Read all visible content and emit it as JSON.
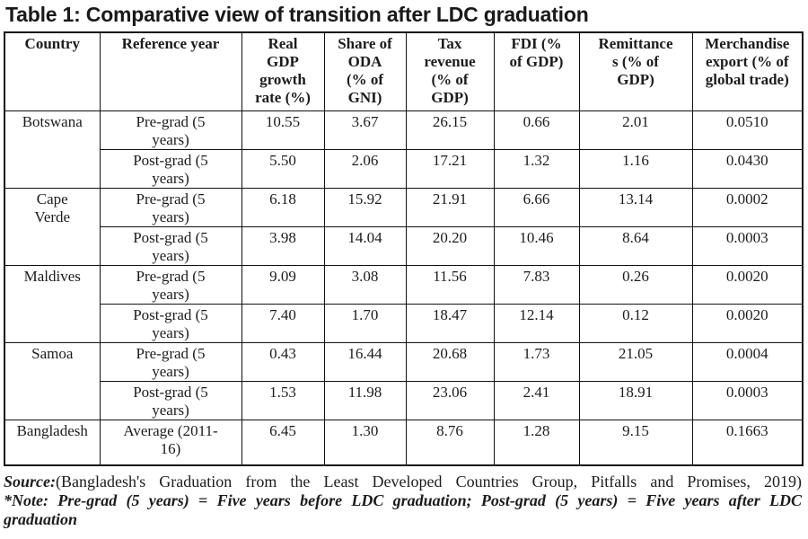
{
  "title": "Table 1: Comparative view of transition after LDC graduation",
  "chart_data": {
    "type": "table",
    "title": "Table 1: Comparative view of transition after LDC graduation",
    "columns": [
      "Country",
      "Reference year",
      "Real GDP growth rate (%)",
      "Share of ODA (% of GNI)",
      "Tax revenue (% of GDP)",
      "FDI (% of GDP)",
      "Remittances (% of GDP)",
      "Merchandise export (% of global trade)"
    ],
    "rows": [
      [
        "Botswana",
        "Pre-grad (5 years)",
        10.55,
        3.67,
        26.15,
        0.66,
        2.01,
        0.051
      ],
      [
        "Botswana",
        "Post-grad (5 years)",
        5.5,
        2.06,
        17.21,
        1.32,
        1.16,
        0.043
      ],
      [
        "Cape Verde",
        "Pre-grad (5 years)",
        6.18,
        15.92,
        21.91,
        6.66,
        13.14,
        0.0002
      ],
      [
        "Cape Verde",
        "Post-grad (5 years)",
        3.98,
        14.04,
        20.2,
        10.46,
        8.64,
        0.0003
      ],
      [
        "Maldives",
        "Pre-grad (5 years)",
        9.09,
        3.08,
        11.56,
        7.83,
        0.26,
        0.002
      ],
      [
        "Maldives",
        "Post-grad (5 years)",
        7.4,
        1.7,
        18.47,
        12.14,
        0.12,
        0.002
      ],
      [
        "Samoa",
        "Pre-grad (5 years)",
        0.43,
        16.44,
        20.68,
        1.73,
        21.05,
        0.0004
      ],
      [
        "Samoa",
        "Post-grad (5 years)",
        1.53,
        11.98,
        23.06,
        2.41,
        18.91,
        0.0003
      ],
      [
        "Bangladesh",
        "Average (2011-16)",
        6.45,
        1.3,
        8.76,
        1.28,
        9.15,
        0.1663
      ]
    ]
  },
  "table": {
    "headers": [
      "Country",
      "Reference year",
      "Real\nGDP\ngrowth\nrate (%)",
      "Share of\nODA\n(% of\nGNI)",
      "Tax\nrevenue\n(% of\nGDP)",
      "FDI (%\nof GDP)",
      "Remittance\ns (% of\nGDP)",
      "Merchandise\nexport (% of\nglobal trade)"
    ],
    "rows": [
      {
        "country": "Botswana",
        "periods": [
          {
            "label": "Pre-grad (5\nyears)",
            "values": [
              "10.55",
              "3.67",
              "26.15",
              "0.66",
              "2.01",
              "0.0510"
            ]
          },
          {
            "label": "Post-grad (5\nyears)",
            "values": [
              "5.50",
              "2.06",
              "17.21",
              "1.32",
              "1.16",
              "0.0430"
            ]
          }
        ]
      },
      {
        "country": "Cape\nVerde",
        "periods": [
          {
            "label": "Pre-grad (5\nyears)",
            "values": [
              "6.18",
              "15.92",
              "21.91",
              "6.66",
              "13.14",
              "0.0002"
            ]
          },
          {
            "label": "Post-grad (5\nyears)",
            "values": [
              "3.98",
              "14.04",
              "20.20",
              "10.46",
              "8.64",
              "0.0003"
            ]
          }
        ]
      },
      {
        "country": "Maldives",
        "periods": [
          {
            "label": "Pre-grad (5\nyears)",
            "values": [
              "9.09",
              "3.08",
              "11.56",
              "7.83",
              "0.26",
              "0.0020"
            ]
          },
          {
            "label": "Post-grad (5\nyears)",
            "values": [
              "7.40",
              "1.70",
              "18.47",
              "12.14",
              "0.12",
              "0.0020"
            ]
          }
        ]
      },
      {
        "country": "Samoa",
        "periods": [
          {
            "label": "Pre-grad (5\nyears)",
            "values": [
              "0.43",
              "16.44",
              "20.68",
              "1.73",
              "21.05",
              "0.0004"
            ]
          },
          {
            "label": "Post-grad (5\nyears)",
            "values": [
              "1.53",
              "11.98",
              "23.06",
              "2.41",
              "18.91",
              "0.0003"
            ]
          }
        ]
      },
      {
        "country": "Bangladesh",
        "periods": [
          {
            "label": "Average (2011-\n16)",
            "values": [
              "6.45",
              "1.30",
              "8.76",
              "1.28",
              "9.15",
              "0.1663"
            ]
          }
        ]
      }
    ]
  },
  "footer": {
    "source_label": "Source:",
    "source_text": "(Bangladesh's Graduation from the Least Developed Countries Group, Pitfalls and Promises, 2019)",
    "note_line1": "*Note: Pre-grad (5 years) = Five years before LDC graduation; Post-grad (5 years) = Five years after LDC",
    "note_line2": "graduation"
  }
}
